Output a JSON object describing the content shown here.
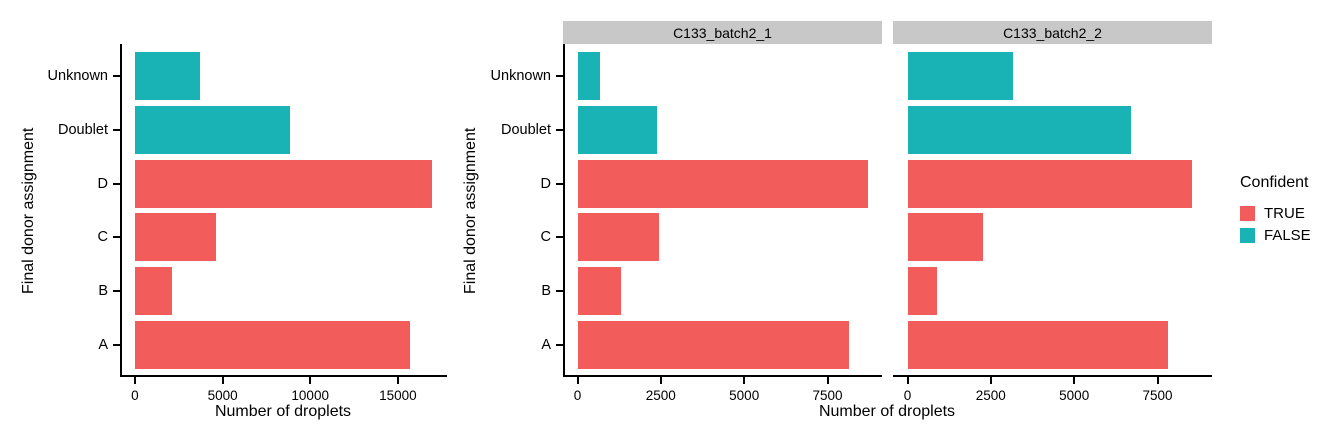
{
  "legend": {
    "title": "Confident",
    "items": [
      {
        "label": "TRUE",
        "color": "#F25D5B"
      },
      {
        "label": "FALSE",
        "color": "#19B2B5"
      }
    ]
  },
  "colors": {
    "confident_true": "#F25D5B",
    "confident_false": "#19B2B5",
    "strip_bg": "#C8C8C8",
    "axis_line": "#000000",
    "background": "#FFFFFF",
    "text": "#000000"
  },
  "chart_data": [
    {
      "type": "bar",
      "orientation": "horizontal",
      "facet_label": "",
      "ylabel": "Final donor assignment",
      "xlabel": "Number of droplets",
      "categories_top_to_bottom": [
        "Unknown",
        "Doublet",
        "D",
        "C",
        "B",
        "A"
      ],
      "values": [
        3700,
        8850,
        16950,
        4650,
        2100,
        15700
      ],
      "confident": [
        false,
        false,
        true,
        true,
        true,
        true
      ],
      "xticks": [
        0,
        5000,
        10000,
        15000
      ],
      "xlim_expanded": [
        -850,
        17800
      ],
      "grid": false,
      "legend_position": "none"
    },
    {
      "type": "bar",
      "orientation": "horizontal",
      "facet_label": "C133_batch2_1",
      "ylabel": "Final donor assignment",
      "xlabel": "Number of droplets",
      "categories_top_to_bottom": [
        "Unknown",
        "Doublet",
        "D",
        "C",
        "B",
        "A"
      ],
      "values": [
        670,
        2370,
        8700,
        2450,
        1310,
        8150
      ],
      "confident": [
        false,
        false,
        true,
        true,
        true,
        true
      ],
      "xticks": [
        0,
        2500,
        5000,
        7500
      ],
      "xlim_expanded": [
        -435,
        9135
      ],
      "grid": false,
      "legend_position": "right"
    },
    {
      "type": "bar",
      "orientation": "horizontal",
      "facet_label": "C133_batch2_2",
      "ylabel": "Final donor assignment",
      "xlabel": "Number of droplets",
      "categories_top_to_bottom": [
        "Unknown",
        "Doublet",
        "D",
        "C",
        "B",
        "A"
      ],
      "values": [
        3150,
        6700,
        8520,
        2260,
        880,
        7800
      ],
      "confident": [
        false,
        false,
        true,
        true,
        true,
        true
      ],
      "xticks": [
        0,
        2500,
        5000,
        7500
      ],
      "xlim_expanded": [
        -435,
        9135
      ],
      "grid": false,
      "legend_position": "right"
    }
  ]
}
